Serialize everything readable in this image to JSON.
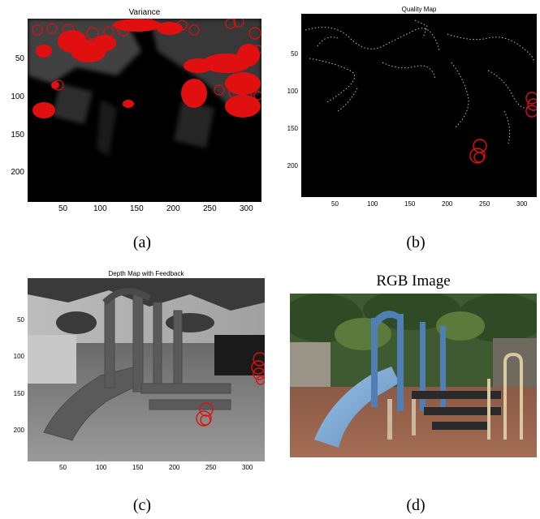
{
  "panels": {
    "a": {
      "title": "Variance",
      "caption": "(a)",
      "x_ticks": [
        "50",
        "100",
        "150",
        "200",
        "250",
        "300"
      ],
      "y_ticks": [
        "50",
        "100",
        "150",
        "200"
      ]
    },
    "b": {
      "title": "Quality Map",
      "caption": "(b)",
      "x_ticks": [
        "50",
        "100",
        "150",
        "200",
        "250",
        "300"
      ],
      "y_ticks": [
        "50",
        "100",
        "150",
        "200"
      ]
    },
    "c": {
      "title": "Depth Map with Feedback",
      "caption": "(c)",
      "x_ticks": [
        "50",
        "100",
        "150",
        "200",
        "250",
        "300"
      ],
      "y_ticks": [
        "50",
        "100",
        "150",
        "200"
      ]
    },
    "d": {
      "title": "RGB Image",
      "caption": "(d)"
    }
  },
  "colors": {
    "marker": "#e01010",
    "background": "#000000"
  }
}
